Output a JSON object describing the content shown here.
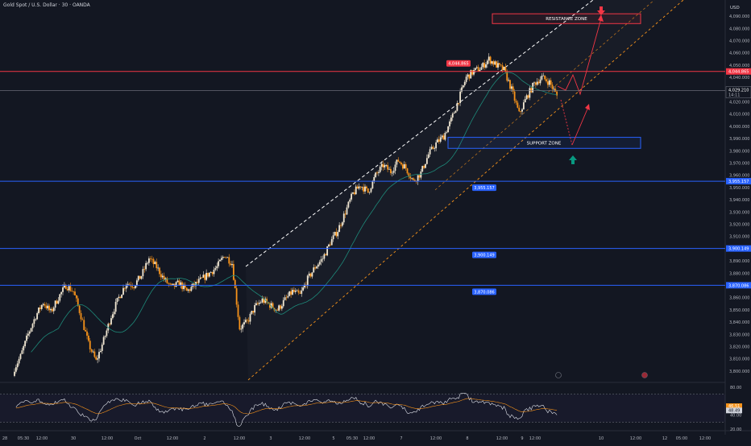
{
  "header": {
    "title": "Gold Spot / U.S. Dollar · 30 · OANDA",
    "currency": "USD"
  },
  "colors": {
    "background": "#131722",
    "up": "#f0e6d2",
    "down": "#f7931a",
    "ma": "#1e8a7a",
    "resistance": "#f23645",
    "support": "#2962ff",
    "price_line": "#787b86",
    "rsi": "#e0e3eb",
    "rsi_ma": "#f7931a"
  },
  "chart_data": {
    "type": "candlestick",
    "y_range": [
      3792,
      4098
    ],
    "y_ticks": [
      "4,090.000",
      "4,080.000",
      "4,070.000",
      "4,060.000",
      "4,050.000",
      "4,040.000",
      "4,030.000",
      "4,020.000",
      "4,010.000",
      "4,000.000",
      "3,990.000",
      "3,980.000",
      "3,970.000",
      "3,960.000",
      "3,950.000",
      "3,940.000",
      "3,930.000",
      "3,920.000",
      "3,910.000",
      "3,900.000",
      "3,890.000",
      "3,880.000",
      "3,870.000",
      "3,860.000",
      "3,850.000",
      "3,840.000",
      "3,830.000",
      "3,820.000",
      "3,810.000",
      "3,800.000"
    ],
    "x_ticks": [
      "28",
      "05:30",
      "12:00",
      "30",
      "12:00",
      "Oct",
      "12:00",
      "2",
      "12:00",
      "3",
      "12:00",
      "5",
      "05:30",
      "12:00",
      "7",
      "12:00",
      "8",
      "12:00",
      "9",
      "12:00",
      "10",
      "12:00",
      "12",
      "05:00",
      "12:00"
    ],
    "close_series": [
      3800,
      3812,
      3830,
      3845,
      3856,
      3848,
      3860,
      3870,
      3865,
      3845,
      3822,
      3808,
      3825,
      3845,
      3860,
      3872,
      3870,
      3878,
      3892,
      3885,
      3875,
      3868,
      3872,
      3865,
      3870,
      3875,
      3880,
      3885,
      3895,
      3888,
      3835,
      3840,
      3852,
      3858,
      3854,
      3850,
      3858,
      3865,
      3862,
      3875,
      3885,
      3892,
      3905,
      3915,
      3930,
      3945,
      3952,
      3946,
      3960,
      3968,
      3963,
      3972,
      3966,
      3955,
      3962,
      3977,
      3986,
      3992,
      4005,
      4022,
      4040,
      4045,
      4048,
      4055,
      4050,
      4046,
      4030,
      4010,
      4024,
      4035,
      4040,
      4036,
      4025
    ],
    "horizontal_levels": [
      {
        "label": "4,044.865",
        "value": 4044.865
      },
      {
        "label": "3,955.157",
        "value": 3955.157
      },
      {
        "label": "3,900.149",
        "value": 3900.149
      },
      {
        "label": "3,870.086",
        "value": 3870.086
      }
    ],
    "current_price": {
      "label": "4,029.210",
      "timer": "14:11",
      "value": 4029.21
    },
    "zones": [
      {
        "label": "RESISTANCE ZONE",
        "low": 4084,
        "high": 4092
      },
      {
        "label": "SUPPORT ZONE",
        "low": 3982,
        "high": 3991
      }
    ],
    "rsi": {
      "levels": [
        "80.00",
        "48.49",
        "40.00",
        "20.00"
      ],
      "ma_label": "46.51",
      "value": 48.49,
      "ma_value": 46.51,
      "range": [
        20,
        80
      ],
      "upper_band": 70,
      "lower_band": 30
    }
  }
}
